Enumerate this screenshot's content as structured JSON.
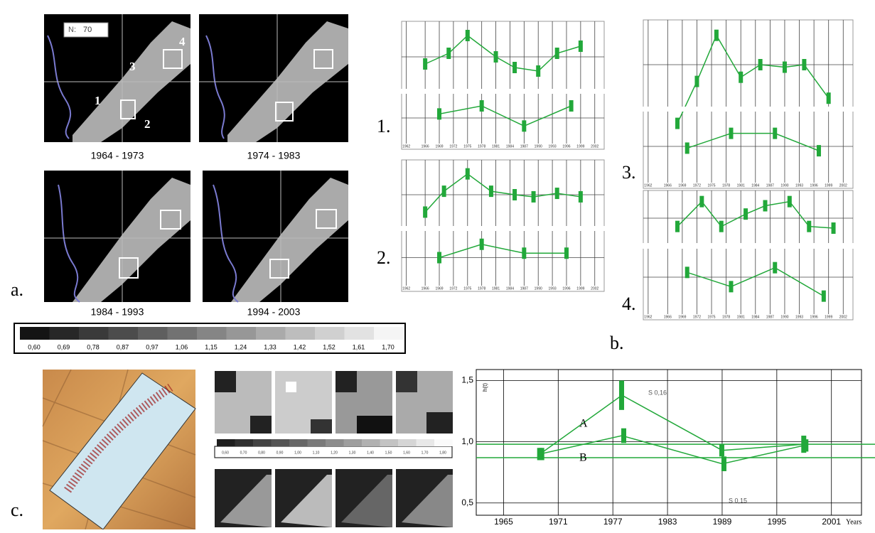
{
  "panel_labels": [
    "a.",
    "b.",
    "c."
  ],
  "maps": {
    "n_label": "N:",
    "n_value": "70",
    "region_labels": [
      "1",
      "2",
      "3",
      "4"
    ],
    "periods": [
      "1964 - 1973",
      "1974 - 1983",
      "1984 - 1993",
      "1994 - 2003"
    ]
  },
  "scale": [
    "0,60",
    "0,69",
    "0,78",
    "0,87",
    "0,97",
    "1,06",
    "1,15",
    "1,24",
    "1,33",
    "1,42",
    "1,52",
    "1,61",
    "1,70"
  ],
  "scale_c": [
    "0,60",
    "0,70",
    "0,80",
    "0,90",
    "1,00",
    "1,10",
    "1,20",
    "1,30",
    "1,40",
    "1,50",
    "1,60",
    "1,70",
    "1,80"
  ],
  "chart_data": [
    {
      "type": "line",
      "label": "1.",
      "color": "#22a83a",
      "xlim": [
        1961,
        2004
      ],
      "xticks": [
        1962,
        1966,
        1969,
        1972,
        1975,
        1978,
        1981,
        1984,
        1987,
        1990,
        1993,
        1996,
        1999,
        2002
      ],
      "panels": [
        {
          "x": [
            1966,
            1971,
            1975,
            1981,
            1985,
            1990,
            1994,
            1999
          ],
          "values": [
            1.15,
            1.3,
            1.55,
            1.25,
            1.1,
            1.05,
            1.3,
            1.4
          ],
          "ylim": [
            0.8,
            1.7
          ]
        },
        {
          "x": [
            1969,
            1978,
            1987,
            1997
          ],
          "values": [
            0.95,
            1.05,
            0.8,
            1.05
          ],
          "ylim": [
            0.6,
            1.2
          ]
        }
      ]
    },
    {
      "type": "line",
      "label": "2.",
      "color": "#22a83a",
      "xlim": [
        1961,
        2004
      ],
      "xticks": [
        1962,
        1966,
        1969,
        1972,
        1975,
        1978,
        1981,
        1984,
        1987,
        1990,
        1993,
        1996,
        1999,
        2002
      ],
      "panels": [
        {
          "x": [
            1966,
            1970,
            1975,
            1980,
            1985,
            1989,
            1994,
            1999
          ],
          "values": [
            1.0,
            1.3,
            1.55,
            1.3,
            1.25,
            1.22,
            1.27,
            1.22
          ],
          "ylim": [
            0.8,
            1.7
          ]
        },
        {
          "x": [
            1969,
            1978,
            1987,
            1996
          ],
          "values": [
            0.9,
            1.05,
            0.95,
            0.95
          ],
          "ylim": [
            0.6,
            1.2
          ]
        }
      ]
    },
    {
      "type": "line",
      "label": "3.",
      "color": "#22a83a",
      "xlim": [
        1961,
        2004
      ],
      "xticks": [
        1962,
        1966,
        1969,
        1972,
        1975,
        1978,
        1981,
        1984,
        1987,
        1990,
        1993,
        1996,
        1999,
        2002
      ],
      "panels": [
        {
          "x": [
            1968,
            1972,
            1976,
            1981,
            1985,
            1990,
            1994,
            1999
          ],
          "values": [
            0.6,
            1.1,
            1.65,
            1.15,
            1.3,
            1.27,
            1.3,
            0.9
          ],
          "ylim": [
            0.8,
            1.8
          ]
        },
        {
          "x": [
            1970,
            1979,
            1988,
            1997
          ],
          "values": [
            0.98,
            1.15,
            1.15,
            0.95
          ],
          "ylim": [
            0.6,
            1.4
          ]
        }
      ]
    },
    {
      "type": "line",
      "label": "4.",
      "color": "#22a83a",
      "xlim": [
        1961,
        2004
      ],
      "xticks": [
        1962,
        1966,
        1969,
        1972,
        1975,
        1978,
        1981,
        1984,
        1987,
        1990,
        1993,
        1996,
        1999,
        2002
      ],
      "panels": [
        {
          "x": [
            1968,
            1973,
            1977,
            1982,
            1986,
            1991,
            1995,
            2000
          ],
          "values": [
            1.0,
            1.3,
            1.0,
            1.15,
            1.25,
            1.3,
            1.0,
            0.98
          ],
          "ylim": [
            0.8,
            1.4
          ]
        },
        {
          "x": [
            1970,
            1979,
            1988,
            1998
          ],
          "values": [
            1.25,
            1.1,
            1.3,
            1.0
          ],
          "ylim": [
            0.9,
            1.5
          ]
        }
      ]
    },
    {
      "type": "errorbar",
      "y_label": "h(t)",
      "x_label": "Years",
      "color": "#22a83a",
      "xlim": [
        1962,
        2004.3
      ],
      "ylim": [
        0.4,
        1.59
      ],
      "xticks": [
        1965,
        1971,
        1977,
        1983,
        1989,
        1995,
        2001
      ],
      "yticks": [
        {
          "value": 0.5,
          "label": "0,5"
        },
        {
          "value": 1.0,
          "label": "1,0"
        },
        {
          "value": 1.5,
          "label": "1,5"
        }
      ],
      "hlines": [
        0.98,
        0.87
      ],
      "series": [
        {
          "name": "A",
          "x": [
            1969,
            1978,
            1989,
            1998
          ],
          "values": [
            0.9,
            1.38,
            0.93,
            0.98
          ],
          "errors": [
            0.05,
            0.12,
            0.05,
            0.07
          ]
        },
        {
          "name": "B",
          "x": [
            1969,
            1978,
            1989,
            1998
          ],
          "values": [
            0.9,
            1.05,
            0.82,
            0.97
          ],
          "errors": [
            0.05,
            0.06,
            0.06,
            0.05
          ]
        }
      ],
      "annotations": [
        "S 0,16",
        "S 0,15"
      ]
    }
  ]
}
